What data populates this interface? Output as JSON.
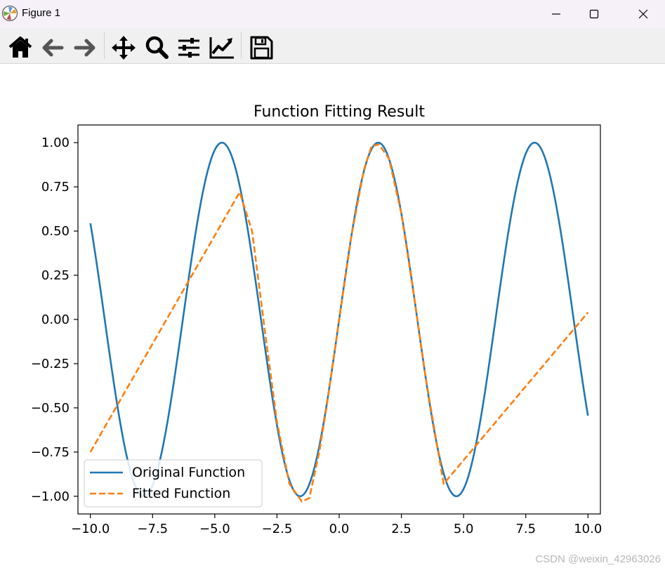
{
  "window": {
    "title": "Figure 1"
  },
  "toolbar": {
    "tools": [
      "home-icon",
      "back-arrow-icon",
      "forward-arrow-icon",
      "pan-icon",
      "zoom-icon",
      "subplots-config-icon",
      "edit-axes-icon",
      "save-icon"
    ]
  },
  "chart_data": {
    "type": "line",
    "title": "Function Fitting Result",
    "xlabel": "",
    "ylabel": "",
    "xlim": [
      -10.5,
      10.5
    ],
    "ylim": [
      -1.1,
      1.1
    ],
    "xticks": [
      -10.0,
      -7.5,
      -5.0,
      -2.5,
      0.0,
      2.5,
      5.0,
      7.5,
      10.0
    ],
    "xtick_labels": [
      "−10.0",
      "−7.5",
      "−5.0",
      "−2.5",
      "0.0",
      "2.5",
      "5.0",
      "7.5",
      "10.0"
    ],
    "yticks": [
      1.0,
      0.75,
      0.5,
      0.25,
      0.0,
      -0.25,
      -0.5,
      -0.75,
      -1.0
    ],
    "ytick_labels": [
      "1.00",
      "0.75",
      "0.50",
      "0.25",
      "0.00",
      "−0.25",
      "−0.50",
      "−0.75",
      "−1.00"
    ],
    "grid": false,
    "legend_position": "lower-left",
    "series": [
      {
        "name": "Original Function",
        "style": "solid",
        "color": "#1f77b4",
        "function": "sin(x)",
        "x_range": [
          -10,
          10
        ]
      },
      {
        "name": "Fitted Function",
        "style": "dashed",
        "color": "#ff7f0e",
        "x": [
          -10.0,
          -4.0,
          -3.5,
          -3.0,
          -2.5,
          -2.0,
          -1.5,
          -1.2,
          -0.8,
          -0.5,
          0.0,
          0.5,
          1.0,
          1.3,
          1.6,
          2.0,
          2.5,
          3.0,
          3.5,
          4.2,
          10.0
        ],
        "y": [
          -0.75,
          0.72,
          0.5,
          -0.05,
          -0.58,
          -0.93,
          -1.03,
          -1.01,
          -0.75,
          -0.49,
          0.0,
          0.48,
          0.85,
          0.98,
          0.99,
          0.91,
          0.6,
          0.14,
          -0.35,
          -0.93,
          0.04
        ]
      }
    ]
  },
  "watermark": "CSDN @weixin_42963026"
}
